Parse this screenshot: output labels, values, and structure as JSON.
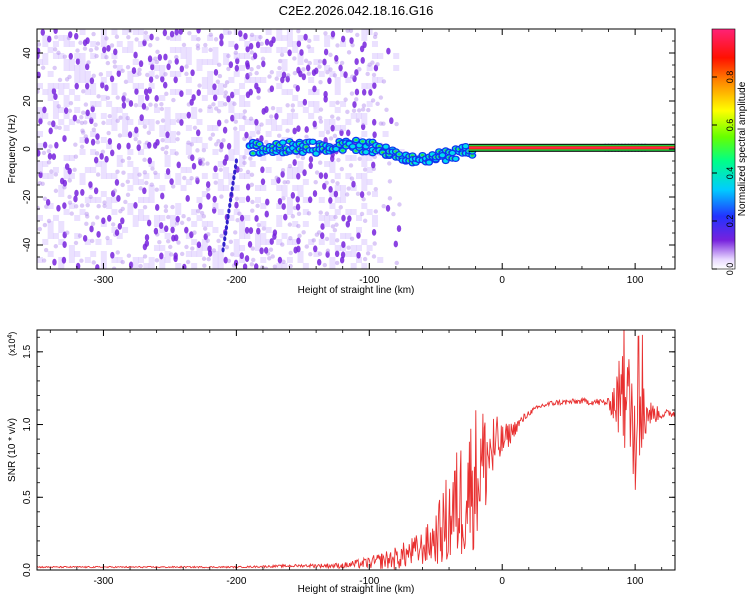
{
  "title": "C2E2.2026.042.18.16.G16",
  "charts": [
    {
      "type": "heatmap",
      "xlabel": "Height of straight line (km)",
      "ylabel": "Frequency (Hz)",
      "xlim": [
        -350,
        130
      ],
      "ylim": [
        -50,
        50
      ],
      "xticks": [
        -300,
        -200,
        -100,
        0,
        100
      ],
      "yticks": [
        -40,
        -20,
        0,
        20,
        40
      ],
      "colorbar": {
        "label": "Normalized spectral amplitude",
        "range": [
          0,
          1
        ],
        "ticks": [
          0.0,
          0.2,
          0.4,
          0.6,
          0.8
        ],
        "tick_labels": [
          "0.0",
          "0.2",
          "0.4",
          "0.6",
          "0.8"
        ]
      },
      "features": [
        {
          "name": "noise",
          "x_range": [
            -350,
            -95
          ],
          "description": "scattered low-amplitude purple speckle"
        },
        {
          "name": "sloped-trace",
          "x_start": -210,
          "x_end": -200,
          "y_start": -42,
          "y_end": -5
        },
        {
          "name": "signal-track",
          "x_range": [
            -190,
            130
          ],
          "center_freq": 0
        }
      ],
      "track_points": [
        {
          "x": -185,
          "y": 0.5
        },
        {
          "x": -160,
          "y": 0.8
        },
        {
          "x": -130,
          "y": 0.5
        },
        {
          "x": -110,
          "y": 1.5
        },
        {
          "x": -90,
          "y": 0
        },
        {
          "x": -75,
          "y": -3
        },
        {
          "x": -60,
          "y": -4
        },
        {
          "x": -45,
          "y": -3
        },
        {
          "x": -30,
          "y": -1
        },
        {
          "x": -15,
          "y": 0.5
        },
        {
          "x": 0,
          "y": 0.5
        },
        {
          "x": 50,
          "y": 0.5
        },
        {
          "x": 90,
          "y": 0.5
        },
        {
          "x": 130,
          "y": 0.5
        }
      ]
    },
    {
      "type": "line",
      "xlabel": "Height of straight line (km)",
      "ylabel": "SNR (10 * v/v)",
      "yscale_label": "(x10",
      "yscale_exp": "4",
      "yscale_close": ")",
      "xlim": [
        -350,
        130
      ],
      "ylim": [
        0,
        1.65
      ],
      "xticks": [
        -300,
        -200,
        -100,
        0,
        100
      ],
      "yticks": [
        0.0,
        0.5,
        1.0,
        1.5
      ],
      "ytick_labels": [
        "0.0",
        "0.5",
        "1.0",
        "1.5"
      ],
      "series": [
        {
          "name": "SNR",
          "color": "#e83030",
          "x": [
            -350,
            -300,
            -250,
            -200,
            -150,
            -120,
            -100,
            -80,
            -60,
            -50,
            -40,
            -30,
            -20,
            -10,
            0,
            10,
            20,
            30,
            40,
            60,
            80,
            90,
            100,
            110,
            120,
            130
          ],
          "y": [
            0.02,
            0.02,
            0.02,
            0.02,
            0.03,
            0.03,
            0.05,
            0.08,
            0.15,
            0.22,
            0.35,
            0.5,
            0.65,
            0.8,
            0.88,
            0.98,
            1.08,
            1.13,
            1.15,
            1.16,
            1.15,
            1.18,
            1.05,
            1.08,
            1.07,
            1.08
          ],
          "noise_amplitude": [
            0.005,
            0.005,
            0.005,
            0.005,
            0.01,
            0.02,
            0.04,
            0.08,
            0.12,
            0.18,
            0.35,
            0.45,
            0.5,
            0.35,
            0.12,
            0.05,
            0.02,
            0.02,
            0.02,
            0.02,
            0.03,
            0.35,
            0.45,
            0.1,
            0.03,
            0.03
          ]
        }
      ]
    }
  ],
  "colors": {
    "axis": "#000000",
    "grid": "#000000",
    "series": "#e83030",
    "noise": "#7722dd",
    "track": "#33dd44"
  }
}
